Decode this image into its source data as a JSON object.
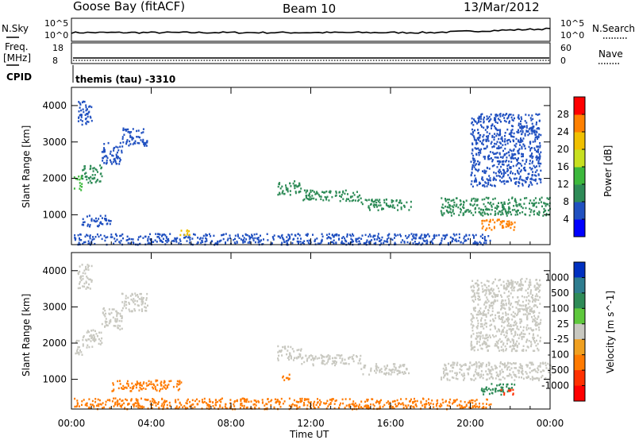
{
  "header": {
    "station": "Goose Bay (fitACF)",
    "beam": "Beam 10",
    "date": "13/Mar/2012"
  },
  "noise_panel": {
    "left_label": "N.Sky",
    "right_label": "N.Search",
    "left_ticks": [
      "10^5",
      "10^0"
    ],
    "right_ticks": [
      "10^5",
      "10^0"
    ]
  },
  "freq_panel": {
    "left_label_line1": "Freq.",
    "left_label_line2": "[MHz]",
    "right_label": "Nave",
    "left_ticks": [
      "18",
      "8"
    ],
    "right_ticks": [
      "60",
      "0"
    ]
  },
  "cpid": {
    "label": "CPID",
    "program": "themis (tau) -3310"
  },
  "chart_data": [
    {
      "type": "heatmap",
      "parameter": "Power",
      "ylabel": "Slant Range [km]",
      "xlabel": "Time UT",
      "colorbar_label": "Power [dB]",
      "colorbar_ticks": [
        "4",
        "8",
        "12",
        "16",
        "20",
        "24",
        "28"
      ],
      "colorbar_colors": [
        "#0000ff",
        "#2050c0",
        "#2e8b57",
        "#3cb83c",
        "#c8e020",
        "#f0c000",
        "#ff8000",
        "#ff0000"
      ],
      "ylim": [
        180,
        4500
      ],
      "yticks": [
        "1000",
        "2000",
        "3000",
        "4000"
      ],
      "xticks": [
        "00:00",
        "04:00",
        "08:00",
        "12:00",
        "16:00",
        "20:00",
        "00:00"
      ],
      "regions": [
        {
          "t0": 0.1,
          "t1": 0.5,
          "r0": 1700,
          "r1": 2100,
          "level": 14
        },
        {
          "t0": 0.5,
          "t1": 1.5,
          "r0": 1900,
          "r1": 2400,
          "level": 8
        },
        {
          "t0": 1.5,
          "t1": 2.5,
          "r0": 2400,
          "r1": 3000,
          "level": 6
        },
        {
          "t0": 2.5,
          "t1": 3.8,
          "r0": 2900,
          "r1": 3400,
          "level": 6
        },
        {
          "t0": 0.3,
          "t1": 1.0,
          "r0": 3500,
          "r1": 4200,
          "level": 4
        },
        {
          "t0": 0.1,
          "t1": 21.0,
          "r0": 200,
          "r1": 500,
          "level": 6
        },
        {
          "t0": 0.5,
          "t1": 2.0,
          "r0": 700,
          "r1": 1000,
          "level": 6
        },
        {
          "t0": 10.3,
          "t1": 11.5,
          "r0": 1550,
          "r1": 1950,
          "level": 10
        },
        {
          "t0": 11.5,
          "t1": 14.5,
          "r0": 1400,
          "r1": 1700,
          "level": 8
        },
        {
          "t0": 14.5,
          "t1": 17.0,
          "r0": 1150,
          "r1": 1450,
          "level": 9
        },
        {
          "t0": 18.5,
          "t1": 24.0,
          "r0": 1000,
          "r1": 1500,
          "level": 10
        },
        {
          "t0": 20.5,
          "t1": 22.2,
          "r0": 600,
          "r1": 900,
          "level": 26
        },
        {
          "t0": 20.0,
          "t1": 23.5,
          "r0": 1800,
          "r1": 3800,
          "level": 5
        },
        {
          "t0": 5.4,
          "t1": 6.0,
          "r0": 450,
          "r1": 600,
          "level": 20
        }
      ]
    },
    {
      "type": "heatmap",
      "parameter": "Velocity",
      "ylabel": "Slant Range [km]",
      "xlabel": "Time UT",
      "colorbar_label": "Velocity [m s^-1]",
      "colorbar_ticks": [
        "1000",
        "500",
        "100",
        "25",
        "-25",
        "-100",
        "-500",
        "-1000"
      ],
      "colorbar_colors": [
        "#0030c0",
        "#2e7d8f",
        "#2e8b57",
        "#5ec83c",
        "#c8c8c0",
        "#f0a020",
        "#ff7a00",
        "#ff3000",
        "#ff0000"
      ],
      "ylim": [
        180,
        4500
      ],
      "yticks": [
        "1000",
        "2000",
        "3000",
        "4000"
      ],
      "xticks": [
        "00:00",
        "04:00",
        "08:00",
        "12:00",
        "16:00",
        "20:00",
        "00:00"
      ],
      "regions": [
        {
          "t0": 0.1,
          "t1": 0.5,
          "r0": 1700,
          "r1": 2100,
          "v": 0
        },
        {
          "t0": 0.5,
          "t1": 1.5,
          "r0": 1900,
          "r1": 2400,
          "v": 0
        },
        {
          "t0": 1.5,
          "t1": 2.5,
          "r0": 2400,
          "r1": 3000,
          "v": 0
        },
        {
          "t0": 2.5,
          "t1": 3.8,
          "r0": 2900,
          "r1": 3400,
          "v": 0
        },
        {
          "t0": 0.3,
          "t1": 1.0,
          "r0": 3500,
          "r1": 4200,
          "v": 0
        },
        {
          "t0": 0.1,
          "t1": 21.0,
          "r0": 200,
          "r1": 500,
          "v": -150
        },
        {
          "t0": 2.0,
          "t1": 5.5,
          "r0": 700,
          "r1": 1000,
          "v": -150
        },
        {
          "t0": 10.3,
          "t1": 11.5,
          "r0": 1550,
          "r1": 1950,
          "v": 0
        },
        {
          "t0": 11.5,
          "t1": 14.5,
          "r0": 1400,
          "r1": 1700,
          "v": 0
        },
        {
          "t0": 14.5,
          "t1": 17.0,
          "r0": 1150,
          "r1": 1450,
          "v": 0
        },
        {
          "t0": 18.5,
          "t1": 24.0,
          "r0": 1000,
          "r1": 1500,
          "v": 0
        },
        {
          "t0": 20.5,
          "t1": 22.2,
          "r0": 600,
          "r1": 900,
          "v": 200
        },
        {
          "t0": 21.5,
          "t1": 22.2,
          "r0": 600,
          "r1": 750,
          "v": -600
        },
        {
          "t0": 20.0,
          "t1": 23.5,
          "r0": 1800,
          "r1": 3800,
          "v": 0
        },
        {
          "t0": 10.5,
          "t1": 10.9,
          "r0": 1000,
          "r1": 1200,
          "v": -300
        }
      ]
    }
  ]
}
